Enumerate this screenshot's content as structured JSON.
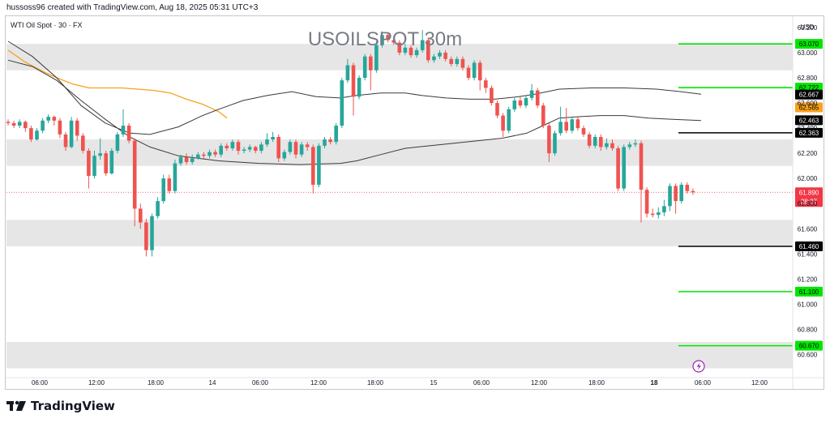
{
  "header": {
    "caption": "hussoss96 created with TradingView.com, Aug 18, 2025 05:31 UTC+3"
  },
  "footer": {
    "brand": "TradingView"
  },
  "colors": {
    "up": "#26a69a",
    "down": "#ef5350",
    "ema_long": "#f7a21b",
    "ma_gray": "#3a3a3a",
    "green_level": "#00e600",
    "black_level": "#000000",
    "zone": "#e6e6e6",
    "last_price": "#f23645",
    "alert": "#9c27b0"
  },
  "chart_data": {
    "type": "candlestick",
    "title": "USOILSPOT 30m",
    "symbol_label": "WTI Oil Spot · 30 · FX",
    "currency": "USD",
    "ylim": [
      60.5,
      63.29
    ],
    "y_ticks": [
      "63.200",
      "63.000",
      "62.800",
      "62.600",
      "62.400",
      "62.200",
      "62.000",
      "61.800",
      "61.600",
      "61.400",
      "61.200",
      "61.000",
      "60.800",
      "60.600"
    ],
    "x_ticks": [
      "06:00",
      "12:00",
      "18:00",
      "14",
      "06:00",
      "12:00",
      "18:00",
      "15",
      "06:00",
      "12:00",
      "18:00",
      "18",
      "06:00",
      "12:00"
    ],
    "zones": [
      {
        "from": 62.86,
        "to": 63.07
      },
      {
        "from": 62.1,
        "to": 62.31
      },
      {
        "from": 61.46,
        "to": 61.67
      },
      {
        "from": 60.49,
        "to": 60.7
      }
    ],
    "levels": [
      {
        "value": 63.07,
        "label": "63.070",
        "kind": "green"
      },
      {
        "value": 62.722,
        "label": "62.722",
        "kind": "green"
      },
      {
        "value": 62.363,
        "label": "62.363",
        "kind": "black"
      },
      {
        "value": 61.46,
        "label": "61.460",
        "kind": "black"
      },
      {
        "value": 61.1,
        "label": "61.100",
        "kind": "green"
      },
      {
        "value": 60.67,
        "label": "60.670",
        "kind": "green"
      }
    ],
    "indicator_tags": [
      {
        "value": 62.667,
        "label": "62.667",
        "kind": "black"
      },
      {
        "value": 62.565,
        "label": "62.565",
        "kind": "orange"
      },
      {
        "value": 62.463,
        "label": "62.463",
        "kind": "black"
      }
    ],
    "last_price": {
      "value": 61.89,
      "label": "61.890",
      "countdown": "28:37"
    },
    "candles": [
      [
        62.45,
        62.44,
        62.47,
        62.42
      ],
      [
        62.44,
        62.42,
        62.46,
        62.4
      ],
      [
        62.42,
        62.45,
        62.47,
        62.4
      ],
      [
        62.45,
        62.4,
        62.46,
        62.37
      ],
      [
        62.4,
        62.31,
        62.42,
        62.29
      ],
      [
        62.31,
        62.38,
        62.4,
        62.3
      ],
      [
        62.38,
        62.46,
        62.48,
        62.36
      ],
      [
        62.46,
        62.49,
        62.51,
        62.44
      ],
      [
        62.49,
        62.46,
        62.5,
        62.42
      ],
      [
        62.46,
        62.35,
        62.48,
        62.32
      ],
      [
        62.35,
        62.25,
        62.37,
        62.22
      ],
      [
        62.25,
        62.46,
        62.49,
        62.24
      ],
      [
        62.46,
        62.34,
        62.48,
        62.3
      ],
      [
        62.34,
        62.22,
        62.36,
        62.2
      ],
      [
        62.22,
        62.02,
        62.24,
        61.92
      ],
      [
        62.02,
        62.18,
        62.22,
        62.0
      ],
      [
        62.18,
        62.2,
        62.32,
        62.15
      ],
      [
        62.2,
        62.04,
        62.22,
        62.02
      ],
      [
        62.04,
        62.22,
        62.24,
        62.03
      ],
      [
        62.22,
        62.35,
        62.37,
        62.2
      ],
      [
        62.35,
        62.42,
        62.55,
        62.33
      ],
      [
        62.42,
        62.3,
        62.44,
        62.28
      ],
      [
        62.3,
        61.76,
        62.32,
        61.62
      ],
      [
        61.76,
        61.65,
        61.8,
        61.6
      ],
      [
        61.65,
        61.43,
        61.68,
        61.38
      ],
      [
        61.43,
        61.7,
        61.72,
        61.38
      ],
      [
        61.7,
        61.82,
        61.85,
        61.68
      ],
      [
        61.82,
        62.0,
        62.03,
        61.8
      ],
      [
        62.0,
        61.9,
        62.03,
        61.88
      ],
      [
        61.9,
        62.12,
        62.15,
        61.88
      ],
      [
        62.12,
        62.17,
        62.19,
        62.1
      ],
      [
        62.17,
        62.13,
        62.2,
        62.11
      ],
      [
        62.13,
        62.16,
        62.19,
        62.11
      ],
      [
        62.16,
        62.19,
        62.21,
        62.15
      ],
      [
        62.19,
        62.18,
        62.21,
        62.16
      ],
      [
        62.18,
        62.21,
        62.23,
        62.16
      ],
      [
        62.21,
        62.19,
        62.23,
        62.17
      ],
      [
        62.19,
        62.26,
        62.28,
        62.17
      ],
      [
        62.26,
        62.24,
        62.28,
        62.22
      ],
      [
        62.24,
        62.29,
        62.31,
        62.22
      ],
      [
        62.29,
        62.22,
        62.31,
        62.19
      ],
      [
        62.22,
        62.23,
        62.25,
        62.2
      ],
      [
        62.23,
        62.25,
        62.27,
        62.21
      ],
      [
        62.25,
        62.22,
        62.26,
        62.2
      ],
      [
        62.22,
        62.27,
        62.29,
        62.2
      ],
      [
        62.27,
        62.31,
        62.36,
        62.25
      ],
      [
        62.31,
        62.33,
        62.37,
        62.29
      ],
      [
        62.33,
        62.16,
        62.35,
        62.13
      ],
      [
        62.16,
        62.21,
        62.23,
        62.14
      ],
      [
        62.21,
        62.29,
        62.31,
        62.19
      ],
      [
        62.29,
        62.19,
        62.31,
        62.16
      ],
      [
        62.19,
        62.27,
        62.29,
        62.17
      ],
      [
        62.27,
        62.25,
        62.29,
        62.22
      ],
      [
        62.25,
        61.95,
        62.27,
        61.88
      ],
      [
        61.95,
        62.26,
        62.28,
        61.93
      ],
      [
        62.26,
        62.31,
        62.33,
        62.24
      ],
      [
        62.31,
        62.29,
        62.33,
        62.27
      ],
      [
        62.29,
        62.42,
        62.44,
        62.27
      ],
      [
        62.42,
        62.78,
        62.8,
        62.4
      ],
      [
        62.78,
        62.9,
        62.95,
        62.76
      ],
      [
        62.9,
        62.65,
        62.92,
        62.5
      ],
      [
        62.65,
        62.8,
        62.82,
        62.63
      ],
      [
        62.8,
        62.97,
        62.99,
        62.78
      ],
      [
        62.97,
        62.86,
        62.99,
        62.7
      ],
      [
        62.86,
        63.06,
        63.09,
        62.84
      ],
      [
        63.06,
        63.14,
        63.17,
        63.04
      ],
      [
        63.14,
        63.1,
        63.16,
        63.08
      ],
      [
        63.1,
        63.08,
        63.12,
        63.06
      ],
      [
        63.08,
        63.0,
        63.1,
        62.98
      ],
      [
        63.0,
        63.04,
        63.07,
        62.98
      ],
      [
        63.04,
        62.98,
        63.06,
        62.96
      ],
      [
        62.98,
        63.02,
        63.04,
        62.96
      ],
      [
        63.02,
        63.1,
        63.18,
        63.0
      ],
      [
        63.1,
        62.94,
        63.12,
        62.92
      ],
      [
        62.94,
        62.97,
        62.99,
        62.92
      ],
      [
        62.97,
        63.0,
        63.02,
        62.95
      ],
      [
        63.0,
        62.95,
        63.02,
        62.93
      ],
      [
        62.95,
        62.91,
        62.97,
        62.89
      ],
      [
        62.91,
        62.95,
        62.97,
        62.89
      ],
      [
        62.95,
        62.88,
        62.97,
        62.86
      ],
      [
        62.88,
        62.8,
        62.9,
        62.78
      ],
      [
        62.8,
        62.92,
        62.94,
        62.78
      ],
      [
        62.92,
        62.78,
        62.94,
        62.7
      ],
      [
        62.78,
        62.72,
        62.8,
        62.68
      ],
      [
        62.72,
        62.6,
        62.74,
        62.58
      ],
      [
        62.6,
        62.5,
        62.62,
        62.48
      ],
      [
        62.5,
        62.38,
        62.52,
        62.33
      ],
      [
        62.38,
        62.55,
        62.57,
        62.36
      ],
      [
        62.55,
        62.62,
        62.64,
        62.53
      ],
      [
        62.62,
        62.58,
        62.65,
        62.56
      ],
      [
        62.58,
        62.64,
        62.66,
        62.56
      ],
      [
        62.64,
        62.7,
        62.75,
        62.62
      ],
      [
        62.7,
        62.58,
        62.72,
        62.56
      ],
      [
        62.58,
        62.42,
        62.6,
        62.4
      ],
      [
        62.42,
        62.2,
        62.44,
        62.13
      ],
      [
        62.2,
        62.36,
        62.38,
        62.18
      ],
      [
        62.36,
        62.45,
        62.57,
        62.34
      ],
      [
        62.45,
        62.38,
        62.56,
        62.36
      ],
      [
        62.38,
        62.47,
        62.49,
        62.36
      ],
      [
        62.47,
        62.4,
        62.49,
        62.38
      ],
      [
        62.4,
        62.35,
        62.42,
        62.33
      ],
      [
        62.35,
        62.26,
        62.37,
        62.24
      ],
      [
        62.26,
        62.33,
        62.35,
        62.24
      ],
      [
        62.33,
        62.25,
        62.35,
        62.22
      ],
      [
        62.25,
        62.28,
        62.32,
        62.23
      ],
      [
        62.28,
        62.24,
        62.31,
        62.22
      ],
      [
        62.24,
        61.92,
        62.26,
        61.9
      ],
      [
        61.92,
        62.25,
        62.27,
        61.9
      ],
      [
        62.25,
        62.27,
        62.29,
        62.23
      ],
      [
        62.27,
        62.28,
        62.31,
        62.25
      ],
      [
        62.28,
        61.91,
        62.3,
        61.65
      ],
      [
        61.91,
        61.72,
        61.93,
        61.69
      ],
      [
        61.72,
        61.71,
        61.76,
        61.69
      ],
      [
        61.71,
        61.73,
        61.77,
        61.68
      ],
      [
        61.73,
        61.78,
        61.83,
        61.7
      ],
      [
        61.78,
        61.94,
        61.96,
        61.74
      ],
      [
        61.94,
        61.82,
        61.96,
        61.72
      ],
      [
        61.82,
        61.95,
        61.97,
        61.8
      ],
      [
        61.95,
        61.9,
        61.97,
        61.88
      ],
      [
        61.9,
        61.89,
        61.92,
        61.87
      ]
    ],
    "indicators": [
      {
        "name": "ema_long",
        "points": [
          [
            0,
            63.02
          ],
          [
            20,
            62.93
          ],
          [
            40,
            62.86
          ],
          [
            60,
            62.8
          ],
          [
            80,
            62.75
          ],
          [
            100,
            62.72
          ],
          [
            120,
            62.72
          ],
          [
            140,
            62.72
          ],
          [
            160,
            62.71
          ],
          [
            180,
            62.7
          ],
          [
            200,
            62.68
          ],
          [
            220,
            62.63
          ],
          [
            240,
            62.59
          ],
          [
            260,
            62.53
          ],
          [
            270,
            62.48
          ]
        ]
      },
      {
        "name": "ma_upper",
        "points": [
          [
            0,
            63.09
          ],
          [
            30,
            62.97
          ],
          [
            60,
            62.8
          ],
          [
            90,
            62.58
          ],
          [
            120,
            62.44
          ],
          [
            150,
            62.36
          ],
          [
            175,
            62.35
          ],
          [
            210,
            62.41
          ],
          [
            240,
            62.5
          ],
          [
            260,
            62.55
          ],
          [
            290,
            62.62
          ],
          [
            320,
            62.66
          ],
          [
            350,
            62.69
          ],
          [
            380,
            62.65
          ],
          [
            410,
            62.64
          ],
          [
            430,
            62.66
          ],
          [
            460,
            62.68
          ],
          [
            490,
            62.68
          ],
          [
            510,
            62.66
          ],
          [
            540,
            62.64
          ],
          [
            570,
            62.63
          ],
          [
            600,
            62.63
          ],
          [
            630,
            62.65
          ],
          [
            650,
            62.67
          ],
          [
            680,
            62.71
          ],
          [
            720,
            62.72
          ],
          [
            760,
            62.72
          ],
          [
            800,
            62.71
          ],
          [
            830,
            62.69
          ],
          [
            855,
            62.67
          ]
        ]
      },
      {
        "name": "ma_lower",
        "points": [
          [
            0,
            62.94
          ],
          [
            30,
            62.89
          ],
          [
            60,
            62.78
          ],
          [
            90,
            62.62
          ],
          [
            120,
            62.47
          ],
          [
            150,
            62.33
          ],
          [
            175,
            62.25
          ],
          [
            210,
            62.18
          ],
          [
            260,
            62.14
          ],
          [
            310,
            62.12
          ],
          [
            360,
            62.11
          ],
          [
            410,
            62.12
          ],
          [
            430,
            62.14
          ],
          [
            460,
            62.19
          ],
          [
            490,
            62.24
          ],
          [
            520,
            62.26
          ],
          [
            550,
            62.28
          ],
          [
            580,
            62.3
          ],
          [
            610,
            62.32
          ],
          [
            640,
            62.36
          ],
          [
            660,
            62.42
          ],
          [
            680,
            62.48
          ],
          [
            700,
            62.49
          ],
          [
            730,
            62.5
          ],
          [
            760,
            62.5
          ],
          [
            790,
            62.48
          ],
          [
            820,
            62.47
          ],
          [
            855,
            62.46
          ]
        ]
      }
    ]
  }
}
